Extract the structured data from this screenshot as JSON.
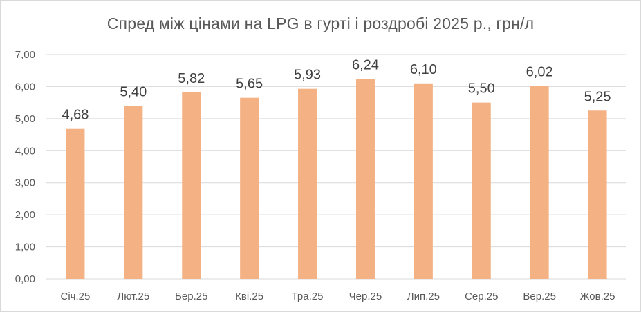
{
  "chart_data": {
    "type": "bar",
    "title": "Спред між цінами на LPG в гурті і роздробі 2025 р., грн/л",
    "xlabel": "",
    "ylabel": "",
    "categories": [
      "Січ.25",
      "Лют.25",
      "Бер.25",
      "Кві.25",
      "Тра.25",
      "Чер.25",
      "Лип.25",
      "Сер.25",
      "Вер.25",
      "Жов.25"
    ],
    "values": [
      4.68,
      5.4,
      5.82,
      5.65,
      5.93,
      6.24,
      6.1,
      5.5,
      6.02,
      5.25
    ],
    "data_labels": [
      "4,68",
      "5,40",
      "5,82",
      "5,65",
      "5,93",
      "6,24",
      "6,10",
      "5,50",
      "6,02",
      "5,25"
    ],
    "ylim": [
      0,
      7
    ],
    "y_ticks": [
      0,
      1,
      2,
      3,
      4,
      5,
      6,
      7
    ],
    "y_tick_labels": [
      "0,00",
      "1,00",
      "2,00",
      "3,00",
      "4,00",
      "5,00",
      "6,00",
      "7,00"
    ],
    "grid": true,
    "legend": "none",
    "colors": {
      "bar": "#F4B183",
      "grid": "#d9d9d9",
      "text": "#595959",
      "data_label": "#404040"
    }
  }
}
